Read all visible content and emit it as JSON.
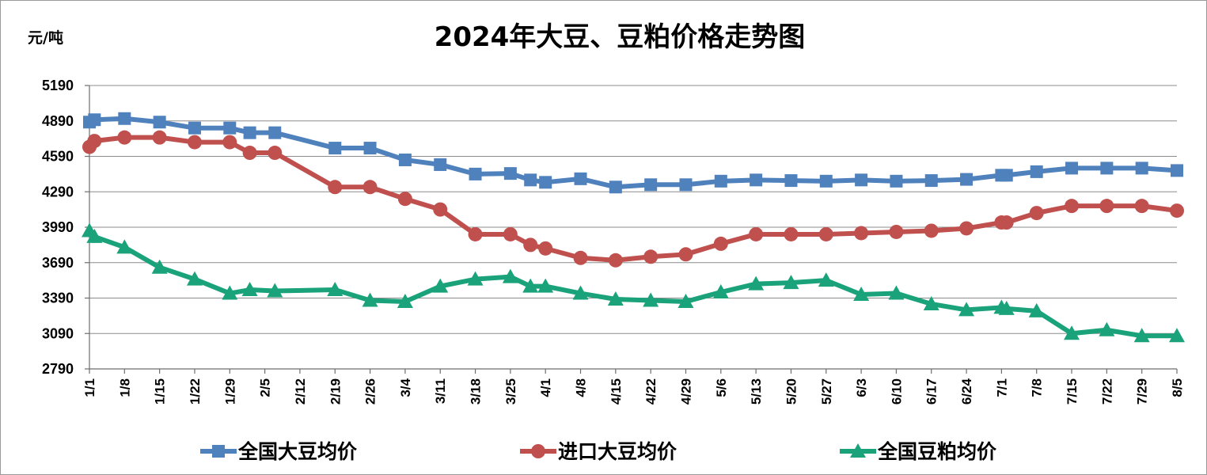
{
  "chart_data": {
    "type": "line",
    "title": "2024年大豆、豆粕价格走势图",
    "ylabel": "元/吨",
    "ylim": [
      2790,
      5190
    ],
    "yticks": [
      2790,
      3090,
      3390,
      3690,
      3990,
      4290,
      4590,
      4890,
      5190
    ],
    "x_dates": [
      "1/1",
      "1/2",
      "1/8",
      "1/15",
      "1/22",
      "1/29",
      "2/2",
      "2/7",
      "2/19",
      "2/26",
      "3/4",
      "3/11",
      "3/18",
      "3/25",
      "3/29",
      "4/1",
      "4/8",
      "4/15",
      "4/22",
      "4/29",
      "5/6",
      "5/13",
      "5/20",
      "5/27",
      "6/3",
      "6/10",
      "6/17",
      "6/24",
      "7/1",
      "7/2",
      "7/8",
      "7/15",
      "7/22",
      "7/29",
      "8/5"
    ],
    "x_tick_labels": [
      "1/1",
      "1/8",
      "1/15",
      "1/22",
      "1/29",
      "2/5",
      "2/12",
      "2/19",
      "2/26",
      "3/4",
      "3/11",
      "3/18",
      "3/25",
      "4/1",
      "4/8",
      "4/15",
      "4/22",
      "4/29",
      "5/6",
      "5/13",
      "5/20",
      "5/27",
      "6/3",
      "6/10",
      "6/17",
      "6/24",
      "7/1",
      "7/8",
      "7/15",
      "7/22",
      "7/29",
      "8/5"
    ],
    "series": [
      {
        "name": "全国大豆均价",
        "color": "#4f81bd",
        "marker": "square",
        "values": [
          4880,
          4900,
          4910,
          4880,
          4830,
          4830,
          4790,
          4790,
          4660,
          4660,
          4560,
          4520,
          4440,
          4445,
          4390,
          4370,
          4400,
          4330,
          4350,
          4350,
          4380,
          4390,
          4385,
          4380,
          4390,
          4380,
          4385,
          4395,
          4430,
          4430,
          4460,
          4490,
          4490,
          4490,
          4470
        ]
      },
      {
        "name": "进口大豆均价",
        "color": "#c0504d",
        "marker": "circle",
        "values": [
          4670,
          4720,
          4750,
          4750,
          4710,
          4710,
          4620,
          4620,
          4330,
          4330,
          4230,
          4140,
          3930,
          3930,
          3840,
          3810,
          3730,
          3710,
          3740,
          3760,
          3850,
          3930,
          3930,
          3930,
          3940,
          3950,
          3960,
          3980,
          4030,
          4030,
          4110,
          4170,
          4170,
          4170,
          4130
        ]
      },
      {
        "name": "全国豆粕均价",
        "color": "#1aa37a",
        "marker": "triangle",
        "values": [
          3960,
          3910,
          3820,
          3650,
          3550,
          3430,
          3460,
          3450,
          3460,
          3370,
          3360,
          3490,
          3550,
          3570,
          3490,
          3490,
          3430,
          3380,
          3370,
          3360,
          3440,
          3510,
          3520,
          3540,
          3420,
          3430,
          3340,
          3290,
          3310,
          3300,
          3280,
          3090,
          3120,
          3070,
          3070
        ]
      }
    ],
    "legend": {
      "position": "bottom"
    },
    "grid": true
  }
}
